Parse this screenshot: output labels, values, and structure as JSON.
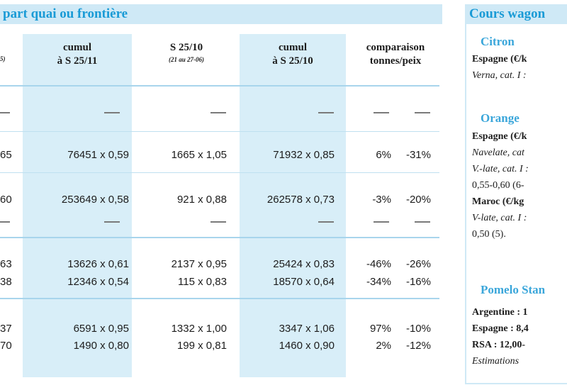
{
  "left_table": {
    "title": "part quai ou frontière",
    "headers": {
      "col0_sub": "5)",
      "col1": "cumul",
      "col1_line2": "à S 25/11",
      "col2": "S 25/10",
      "col2_sub": "(21 au 27-06)",
      "col3": "cumul",
      "col3_line2": "à S 25/10",
      "col4": "comparaison",
      "col4_line2": "tonnes/peix"
    },
    "rows": [
      {
        "c0": "65",
        "c1": "76451 x 0,59",
        "c2": "1665 x 1,05",
        "c3": "71932 x 0,85",
        "c4": "6%",
        "c5": "-31%"
      },
      {
        "c0": "60",
        "c1": "253649 x 0,58",
        "c2": "921 x 0,88",
        "c3": "262578 x 0,73",
        "c4": "-3%",
        "c5": "-20%"
      },
      {
        "c0": "63",
        "c1": "13626 x 0,61",
        "c2": "2137 x 0,95",
        "c3": "25424 x 0,83",
        "c4": "-46%",
        "c5": "-26%"
      },
      {
        "c0": "38",
        "c1": "12346 x 0,54",
        "c2": "115 x 0,83",
        "c3": "18570 x 0,64",
        "c4": "-34%",
        "c5": "-16%"
      },
      {
        "c0": "37",
        "c1": "6591 x 0,95",
        "c2": "1332 x 1,00",
        "c3": "3347 x 1,06",
        "c4": "97%",
        "c5": "-10%"
      },
      {
        "c0": "70",
        "c1": "1490 x 0,80",
        "c2": "199 x 0,81",
        "c3": "1460 x 0,90",
        "c4": "2%",
        "c5": "-12%"
      }
    ]
  },
  "right_panel": {
    "title": "Cours wagon",
    "citron_head": "Citron",
    "citron_l1": "Espagne (€/k",
    "citron_l2": "Verna, cat. I :",
    "orange_head": "Orange",
    "orange_l1": "Espagne (€/k",
    "orange_l2": "Navelate, cat",
    "orange_l3": "V.-late, cat. I :",
    "orange_l4": "0,55-0,60 (6-",
    "orange_l5": "Maroc (€/kg",
    "orange_l6": "V-late, cat. I :",
    "orange_l7": "0,50 (5).",
    "pomelo_head": "Pomelo Stan",
    "pomelo_l1": "Argentine : 1",
    "pomelo_l2": "Espagne : 8,4",
    "pomelo_l3": "RSA : 12,00-",
    "pomelo_l4": "Estimations"
  }
}
